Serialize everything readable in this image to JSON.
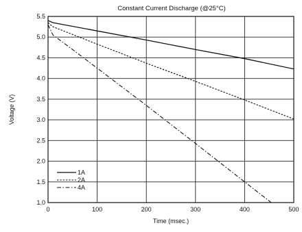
{
  "chart_data": {
    "type": "line",
    "title": "Constant Current Discharge (@25°C)",
    "xlabel": "Time (msec.)",
    "ylabel": "Voltage (V)",
    "xlim": [
      0,
      500
    ],
    "ylim": [
      1.0,
      5.5
    ],
    "x_ticks": [
      "0",
      "100",
      "200",
      "300",
      "400",
      "500"
    ],
    "y_ticks": [
      "1.0",
      "1.5",
      "2.0",
      "2.5",
      "3.0",
      "3.5",
      "4.0",
      "4.5",
      "5.0",
      "5.5"
    ],
    "grid": true,
    "legend_position": "bottom-left",
    "series": [
      {
        "name": "1A",
        "style": "solid",
        "x": [
          0,
          10,
          100,
          200,
          300,
          400,
          500
        ],
        "y": [
          5.4,
          5.35,
          5.15,
          4.93,
          4.7,
          4.48,
          4.23
        ]
      },
      {
        "name": "2A",
        "style": "dotted",
        "x": [
          0,
          10,
          100,
          200,
          300,
          400,
          500
        ],
        "y": [
          5.35,
          5.25,
          4.83,
          4.37,
          3.93,
          3.48,
          3.02
        ]
      },
      {
        "name": "4A",
        "style": "dashdot",
        "x": [
          0,
          10,
          50,
          100,
          200,
          300,
          400,
          465
        ],
        "y": [
          5.3,
          5.05,
          4.7,
          4.25,
          3.35,
          2.43,
          1.5,
          0.9
        ]
      }
    ]
  }
}
